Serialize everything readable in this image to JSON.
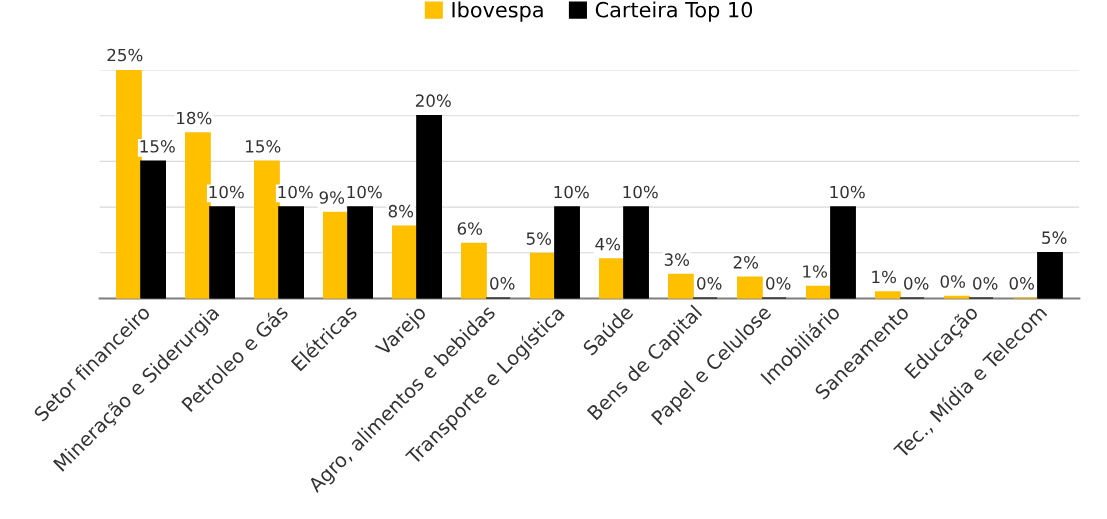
{
  "chart_data": {
    "type": "bar",
    "categories": [
      "Setor financeiro",
      "Mineração e Siderurgia",
      "Petroleo e Gás",
      "Elétricas",
      "Varejo",
      "Agro, alimentos e bebidas",
      "Transporte e Logística",
      "Saúde",
      "Bens de Capital",
      "Papel e Celulose",
      "Imobiliário",
      "Saneamento",
      "Educação",
      "Tec., Mídia e Telecom"
    ],
    "series": [
      {
        "name": "Ibovespa",
        "color": "#ffc000",
        "values": [
          25,
          18.1,
          15,
          9.4,
          7.9,
          6.0,
          4.9,
          4.3,
          2.6,
          2.3,
          1.3,
          0.7,
          0.2,
          0
        ],
        "value_labels": [
          "25%",
          "18%",
          "15%",
          "9%",
          "8%",
          "6%",
          "5%",
          "4%",
          "3%",
          "2%",
          "1%",
          "1%",
          "0%",
          "0%"
        ]
      },
      {
        "name": "Carteira Top 10",
        "color": "#000000",
        "values": [
          15,
          10,
          10,
          10,
          20,
          0,
          10,
          10,
          0,
          0,
          10,
          0,
          0,
          5
        ],
        "value_labels": [
          "15%",
          "10%",
          "10%",
          "10%",
          "20%",
          "0%",
          "10%",
          "10%",
          "0%",
          "0%",
          "10%",
          "0%",
          "0%",
          "5%"
        ]
      }
    ],
    "ylim": [
      0,
      25
    ],
    "yticks": [
      {
        "value": 0,
        "label": null
      },
      {
        "value": 5,
        "label": null
      },
      {
        "value": 10,
        "label": null
      },
      {
        "value": 15,
        "label": null
      },
      {
        "value": 20,
        "label": null
      },
      {
        "value": 25,
        "label": null
      }
    ],
    "tick_labels": "x",
    "grid": "y",
    "legend": "top"
  }
}
